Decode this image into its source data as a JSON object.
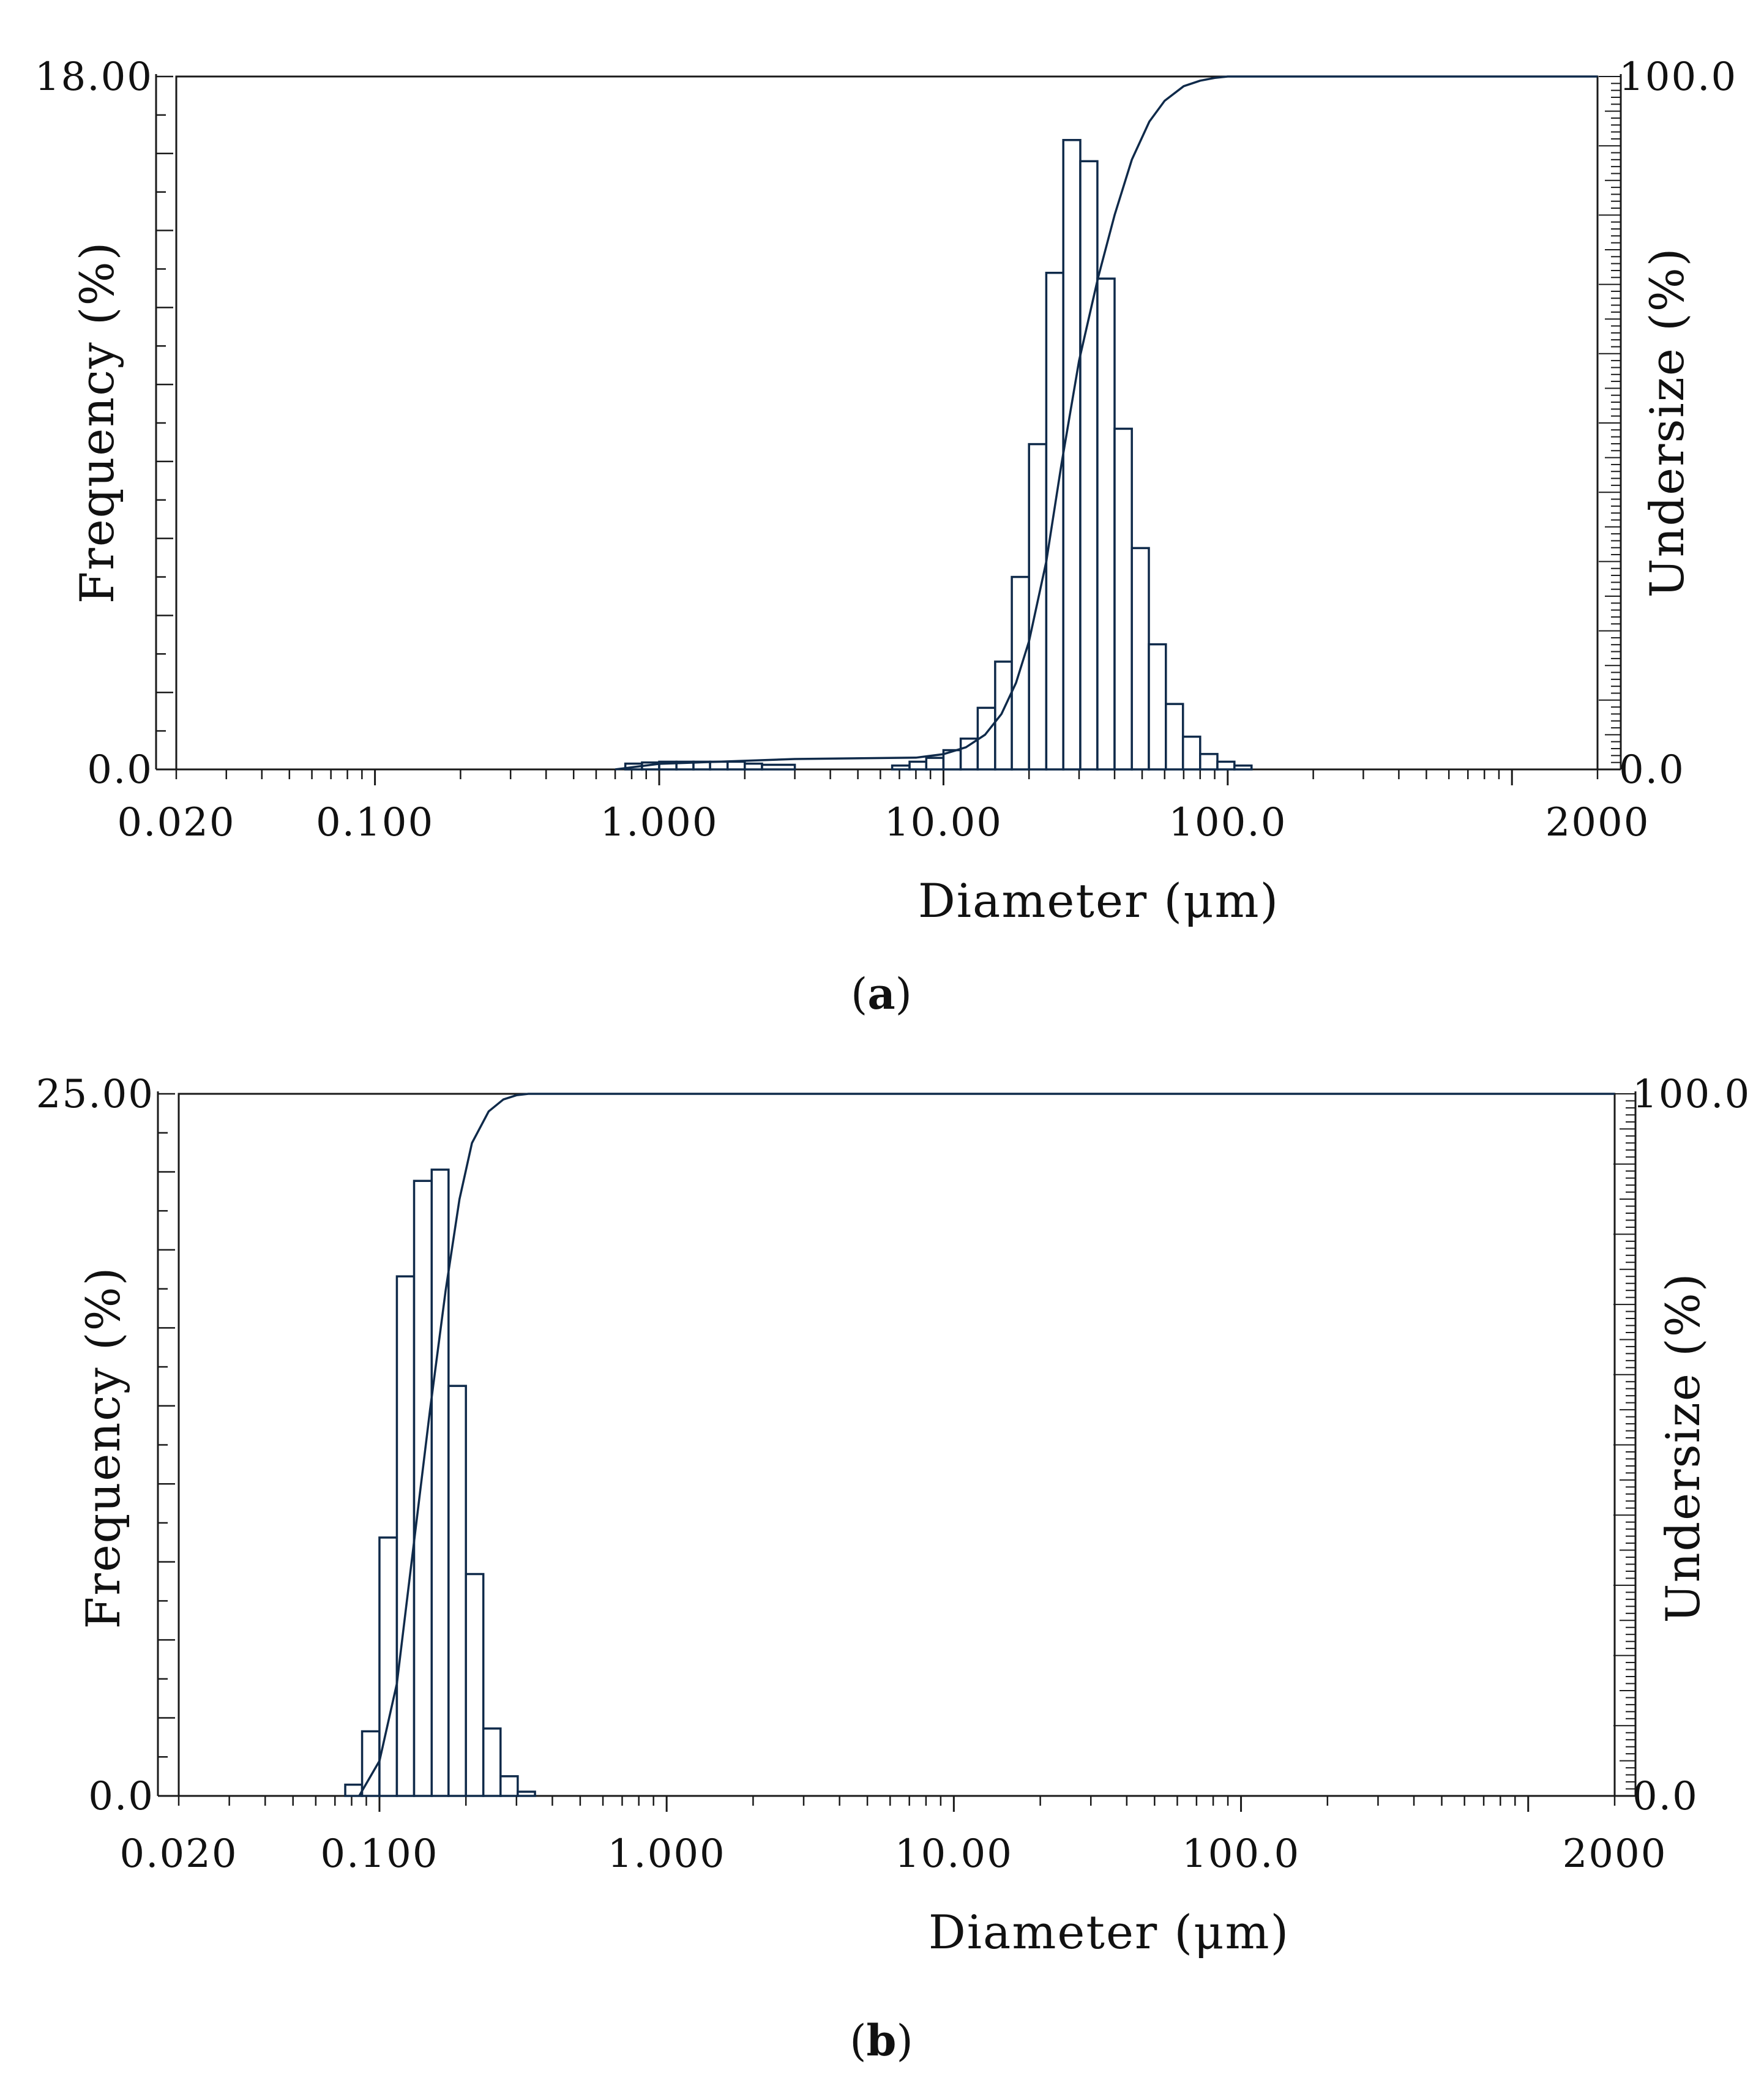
{
  "chart_data": [
    {
      "panel": "a",
      "caption": "a",
      "type": "bar",
      "xlabel": "Diameter (μm)",
      "ylabel": "Frequency (%)",
      "y2label": "Undersize (%)",
      "xscale": "log",
      "xlim": [
        0.02,
        2000
      ],
      "ylim": [
        0,
        18
      ],
      "y2lim": [
        0,
        100
      ],
      "xticklabels": [
        "0.020",
        "0.100",
        "1.000",
        "10.00",
        "100.0",
        "2000"
      ],
      "xtickvalues": [
        0.02,
        0.1,
        1,
        10,
        100,
        2000
      ],
      "yticklabels": [
        "0.0",
        "18.00"
      ],
      "y2ticklabels": [
        "0.0",
        "100.0"
      ],
      "bars": [
        {
          "lo": 0.76,
          "hi": 0.87,
          "value": 0.15
        },
        {
          "lo": 0.87,
          "hi": 1.0,
          "value": 0.18
        },
        {
          "lo": 1.0,
          "hi": 1.15,
          "value": 0.2
        },
        {
          "lo": 1.15,
          "hi": 1.32,
          "value": 0.2
        },
        {
          "lo": 1.32,
          "hi": 1.51,
          "value": 0.2
        },
        {
          "lo": 1.51,
          "hi": 1.74,
          "value": 0.2
        },
        {
          "lo": 1.74,
          "hi": 2.0,
          "value": 0.2
        },
        {
          "lo": 2.0,
          "hi": 2.3,
          "value": 0.15
        },
        {
          "lo": 2.3,
          "hi": 3.0,
          "value": 0.12
        },
        {
          "lo": 6.6,
          "hi": 7.6,
          "value": 0.1
        },
        {
          "lo": 7.6,
          "hi": 8.7,
          "value": 0.2
        },
        {
          "lo": 8.7,
          "hi": 10.0,
          "value": 0.3
        },
        {
          "lo": 10.0,
          "hi": 11.5,
          "value": 0.5
        },
        {
          "lo": 11.5,
          "hi": 13.2,
          "value": 0.8
        },
        {
          "lo": 13.2,
          "hi": 15.2,
          "value": 1.6
        },
        {
          "lo": 15.2,
          "hi": 17.4,
          "value": 2.8
        },
        {
          "lo": 17.4,
          "hi": 20.0,
          "value": 5.0
        },
        {
          "lo": 20.0,
          "hi": 23.0,
          "value": 8.45
        },
        {
          "lo": 23.0,
          "hi": 26.4,
          "value": 12.9
        },
        {
          "lo": 26.4,
          "hi": 30.3,
          "value": 16.35
        },
        {
          "lo": 30.3,
          "hi": 34.8,
          "value": 15.8
        },
        {
          "lo": 34.8,
          "hi": 40.0,
          "value": 12.75
        },
        {
          "lo": 40.0,
          "hi": 46.0,
          "value": 8.85
        },
        {
          "lo": 46.0,
          "hi": 52.8,
          "value": 5.75
        },
        {
          "lo": 52.8,
          "hi": 60.6,
          "value": 3.25
        },
        {
          "lo": 60.6,
          "hi": 69.6,
          "value": 1.7
        },
        {
          "lo": 69.6,
          "hi": 80.0,
          "value": 0.85
        },
        {
          "lo": 80.0,
          "hi": 92.0,
          "value": 0.4
        },
        {
          "lo": 92.0,
          "hi": 105.6,
          "value": 0.2
        },
        {
          "lo": 105.6,
          "hi": 121.3,
          "value": 0.1
        }
      ],
      "undersize_curve": {
        "x": [
          0.7,
          1.0,
          3.0,
          8.0,
          10.0,
          12.0,
          14.0,
          16.0,
          18.0,
          20.0,
          23.0,
          26.0,
          30.0,
          35.0,
          40.0,
          46.0,
          53.0,
          60.0,
          70.0,
          80.0,
          90.0,
          100.0,
          110.0,
          2000.0
        ],
        "y": [
          0.0,
          0.8,
          1.5,
          1.7,
          2.2,
          3.2,
          5.0,
          8.0,
          12.5,
          18.5,
          30.0,
          44.0,
          59.0,
          71.0,
          80.0,
          88.0,
          93.5,
          96.5,
          98.6,
          99.4,
          99.8,
          100.0,
          100.0,
          100.0
        ]
      }
    },
    {
      "panel": "b",
      "caption": "b",
      "type": "bar",
      "xlabel": "Diameter (μm)",
      "ylabel": "Frequency (%)",
      "y2label": "Undersize (%)",
      "xscale": "log",
      "xlim": [
        0.02,
        2000
      ],
      "ylim": [
        0,
        25
      ],
      "y2lim": [
        0,
        100
      ],
      "xticklabels": [
        "0.020",
        "0.100",
        "1.000",
        "10.00",
        "100.0",
        "2000"
      ],
      "xtickvalues": [
        0.02,
        0.1,
        1,
        10,
        100,
        2000
      ],
      "yticklabels": [
        "0.0",
        "25.00"
      ],
      "y2ticklabels": [
        "0.0",
        "100.0"
      ],
      "bars": [
        {
          "lo": 0.076,
          "hi": 0.087,
          "value": 0.4
        },
        {
          "lo": 0.087,
          "hi": 0.1,
          "value": 2.3
        },
        {
          "lo": 0.1,
          "hi": 0.115,
          "value": 9.2
        },
        {
          "lo": 0.115,
          "hi": 0.132,
          "value": 18.5
        },
        {
          "lo": 0.132,
          "hi": 0.152,
          "value": 21.9
        },
        {
          "lo": 0.152,
          "hi": 0.174,
          "value": 22.3
        },
        {
          "lo": 0.174,
          "hi": 0.2,
          "value": 14.6
        },
        {
          "lo": 0.2,
          "hi": 0.23,
          "value": 7.9
        },
        {
          "lo": 0.23,
          "hi": 0.264,
          "value": 2.4
        },
        {
          "lo": 0.264,
          "hi": 0.303,
          "value": 0.7
        },
        {
          "lo": 0.303,
          "hi": 0.348,
          "value": 0.15
        }
      ],
      "undersize_curve": {
        "x": [
          0.085,
          0.1,
          0.115,
          0.13,
          0.15,
          0.17,
          0.19,
          0.21,
          0.24,
          0.27,
          0.3,
          0.33,
          0.36,
          2000.0
        ],
        "y": [
          0.0,
          5.0,
          16.0,
          34.0,
          55.0,
          72.0,
          85.0,
          93.0,
          97.5,
          99.2,
          99.8,
          100.0,
          100.0,
          100.0
        ]
      }
    }
  ]
}
